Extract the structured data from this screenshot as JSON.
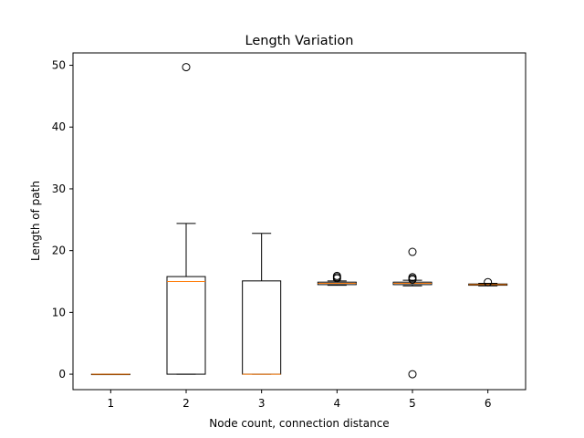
{
  "chart_data": {
    "type": "boxplot",
    "title": "Length Variation",
    "xlabel": "Node count, connection distance",
    "ylabel": "Length of path",
    "ylim": [
      -2.5,
      52
    ],
    "yticks": [
      0,
      10,
      20,
      30,
      40,
      50
    ],
    "categories": [
      "1",
      "2",
      "3",
      "4",
      "5",
      "6"
    ],
    "boxes": [
      {
        "category": "1",
        "whislo": 0.0,
        "q1": 0.0,
        "med": 0.0,
        "q3": 0.0,
        "whishi": 0.0,
        "fliers": []
      },
      {
        "category": "2",
        "whislo": 0.0,
        "q1": 0.0,
        "med": 15.0,
        "q3": 15.8,
        "whishi": 24.4,
        "fliers": [
          49.7
        ]
      },
      {
        "category": "3",
        "whislo": 0.0,
        "q1": 0.0,
        "med": 0.0,
        "q3": 15.1,
        "whishi": 22.8,
        "fliers": []
      },
      {
        "category": "4",
        "whislo": 14.4,
        "q1": 14.5,
        "med": 14.7,
        "q3": 14.9,
        "whishi": 15.1,
        "fliers": [
          15.5,
          15.7,
          15.9
        ]
      },
      {
        "category": "5",
        "whislo": 14.3,
        "q1": 14.5,
        "med": 14.7,
        "q3": 14.9,
        "whishi": 15.2,
        "fliers": [
          15.3,
          15.5,
          15.7,
          19.8,
          0.0
        ]
      },
      {
        "category": "6",
        "whislo": 14.3,
        "q1": 14.4,
        "med": 14.5,
        "q3": 14.6,
        "whishi": 14.7,
        "fliers": [
          14.9
        ]
      }
    ],
    "grid": false,
    "colors": {
      "box": "#000000",
      "median": "#ff7f0e",
      "flier": "#000000",
      "background": "#ffffff"
    }
  }
}
